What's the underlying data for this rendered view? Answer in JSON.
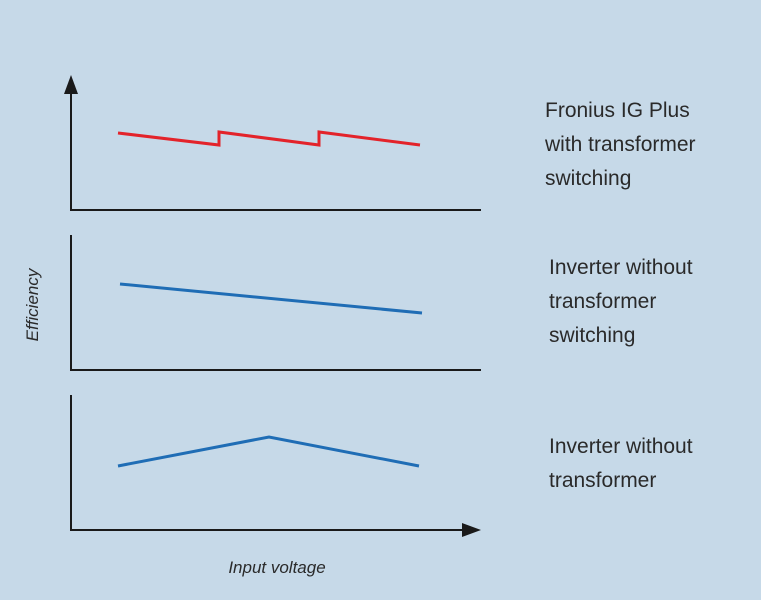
{
  "y_axis_label": "Efficiency",
  "x_axis_label": "Input voltage",
  "panels": [
    {
      "label": [
        "Fronius IG Plus",
        "with transformer",
        "switching"
      ]
    },
    {
      "label": [
        "Inverter without",
        "transformer",
        "switching"
      ]
    },
    {
      "label": [
        "Inverter without",
        "transformer"
      ]
    }
  ]
}
